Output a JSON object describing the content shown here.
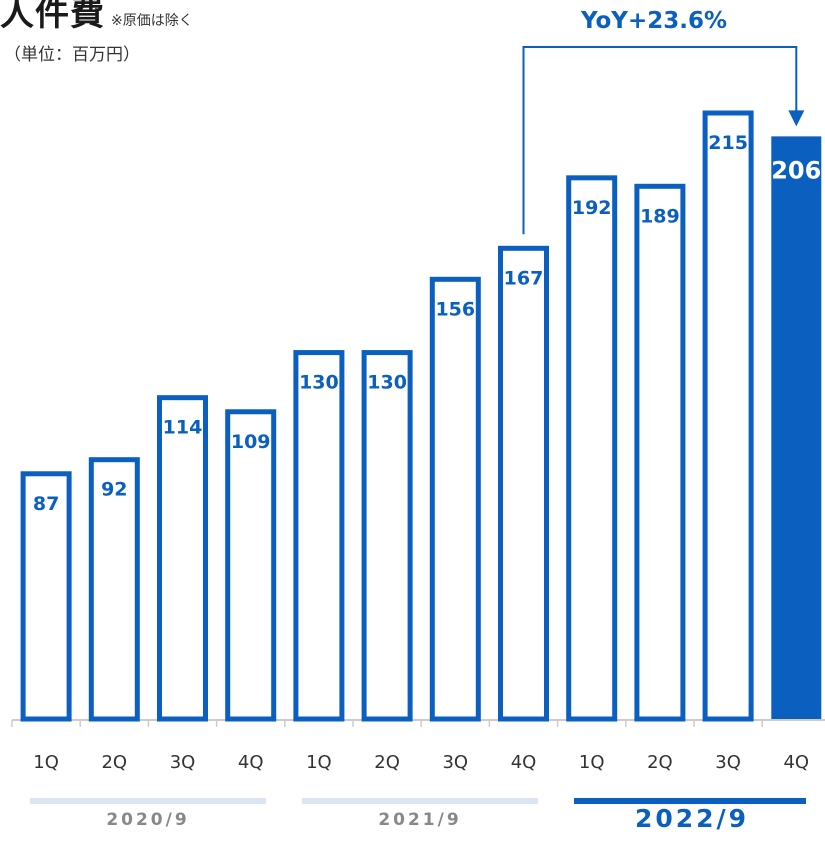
{
  "header": {
    "title": "人件費",
    "title_note": "※原価は除く",
    "unit": "（単位：百万円）"
  },
  "annotation": {
    "yoy": "YoY+23.6%"
  },
  "colors": {
    "accent": "#0a5fbf",
    "axis": "#cccccc",
    "past_period_bar": "#dce6f2"
  },
  "chart_data": {
    "type": "bar",
    "categories": [
      "1Q",
      "2Q",
      "3Q",
      "4Q",
      "1Q",
      "2Q",
      "3Q",
      "4Q",
      "1Q",
      "2Q",
      "3Q",
      "4Q"
    ],
    "groups": [
      {
        "label": "2020/9",
        "categories": [
          "1Q",
          "2Q",
          "3Q",
          "4Q"
        ]
      },
      {
        "label": "2021/9",
        "categories": [
          "1Q",
          "2Q",
          "3Q",
          "4Q"
        ]
      },
      {
        "label": "2022/9",
        "categories": [
          "1Q",
          "2Q",
          "3Q",
          "4Q"
        ]
      }
    ],
    "values": [
      87,
      92,
      114,
      109,
      130,
      130,
      156,
      167,
      192,
      189,
      215,
      206
    ],
    "highlighted_index": 11,
    "ylim": [
      0,
      215
    ],
    "grid": false,
    "legend": "none"
  }
}
